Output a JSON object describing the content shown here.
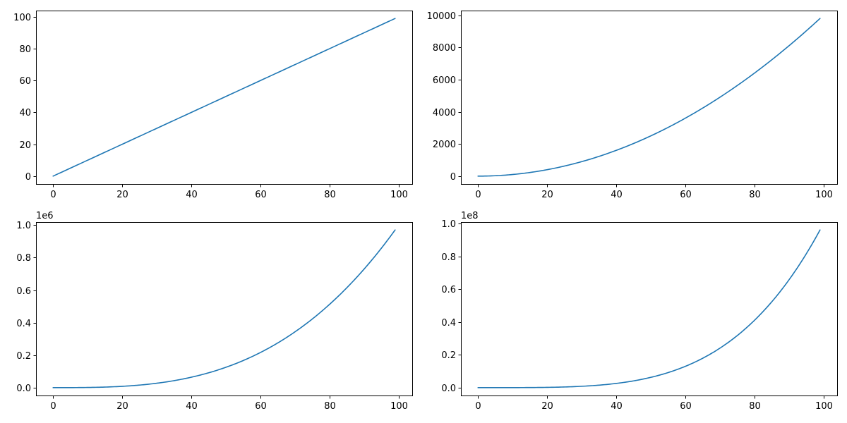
{
  "chart_data": [
    {
      "type": "line",
      "function": "x^1",
      "x_range": [
        0,
        99
      ],
      "x": [
        0,
        10,
        20,
        30,
        40,
        50,
        60,
        70,
        80,
        90,
        99
      ],
      "series": [
        {
          "values": [
            0,
            10,
            20,
            30,
            40,
            50,
            60,
            70,
            80,
            90,
            99
          ]
        }
      ],
      "xlim": [
        -4.95,
        103.95
      ],
      "ylim": [
        -4.95,
        103.95
      ],
      "xticks": [
        0,
        20,
        40,
        60,
        80,
        100
      ],
      "yticks": [
        0,
        20,
        40,
        60,
        80,
        100
      ],
      "xtick_labels": [
        "0",
        "20",
        "40",
        "60",
        "80",
        "100"
      ],
      "ytick_labels": [
        "0",
        "20",
        "40",
        "60",
        "80",
        "100"
      ],
      "offset_text": "",
      "grid": false,
      "color": "#1f77b4"
    },
    {
      "type": "line",
      "function": "x^2",
      "x_range": [
        0,
        99
      ],
      "x": [
        0,
        10,
        20,
        30,
        40,
        50,
        60,
        70,
        80,
        90,
        99
      ],
      "series": [
        {
          "values": [
            0,
            100,
            400,
            900,
            1600,
            2500,
            3600,
            4900,
            6400,
            8100,
            9801
          ]
        }
      ],
      "xlim": [
        -4.95,
        103.95
      ],
      "ylim": [
        -490.05,
        10291.05
      ],
      "xticks": [
        0,
        20,
        40,
        60,
        80,
        100
      ],
      "yticks": [
        0,
        2000,
        4000,
        6000,
        8000,
        10000
      ],
      "xtick_labels": [
        "0",
        "20",
        "40",
        "60",
        "80",
        "100"
      ],
      "ytick_labels": [
        "0",
        "2000",
        "4000",
        "6000",
        "8000",
        "10000"
      ],
      "offset_text": "",
      "grid": false,
      "color": "#1f77b4"
    },
    {
      "type": "line",
      "function": "x^3",
      "x_range": [
        0,
        99
      ],
      "x": [
        0,
        10,
        20,
        30,
        40,
        50,
        60,
        70,
        80,
        90,
        99
      ],
      "series": [
        {
          "values": [
            0,
            1000,
            8000,
            27000,
            64000,
            125000,
            216000,
            343000,
            512000,
            729000,
            970299
          ]
        }
      ],
      "xlim": [
        -4.95,
        103.95
      ],
      "ylim": [
        -48514.95,
        1018813.95
      ],
      "xticks": [
        0,
        20,
        40,
        60,
        80,
        100
      ],
      "yticks": [
        0,
        200000,
        400000,
        600000,
        800000,
        1000000
      ],
      "xtick_labels": [
        "0",
        "20",
        "40",
        "60",
        "80",
        "100"
      ],
      "ytick_labels": [
        "0.0",
        "0.2",
        "0.4",
        "0.6",
        "0.8",
        "1.0"
      ],
      "offset_text": "1e6",
      "grid": false,
      "color": "#1f77b4"
    },
    {
      "type": "line",
      "function": "x^4",
      "x_range": [
        0,
        99
      ],
      "x": [
        0,
        10,
        20,
        30,
        40,
        50,
        60,
        70,
        80,
        90,
        99
      ],
      "series": [
        {
          "values": [
            0,
            10000,
            160000,
            810000,
            2560000,
            6250000,
            12960000,
            24010000,
            40960000,
            65610000,
            96059601
          ]
        }
      ],
      "xlim": [
        -4.95,
        103.95
      ],
      "ylim": [
        -4802980.05,
        100862581.05
      ],
      "xticks": [
        0,
        20,
        40,
        60,
        80,
        100
      ],
      "yticks": [
        0,
        20000000,
        40000000,
        60000000,
        80000000,
        100000000
      ],
      "xtick_labels": [
        "0",
        "20",
        "40",
        "60",
        "80",
        "100"
      ],
      "ytick_labels": [
        "0.0",
        "0.2",
        "0.4",
        "0.6",
        "0.8",
        "1.0"
      ],
      "offset_text": "1e8",
      "grid": false,
      "color": "#1f77b4"
    }
  ]
}
